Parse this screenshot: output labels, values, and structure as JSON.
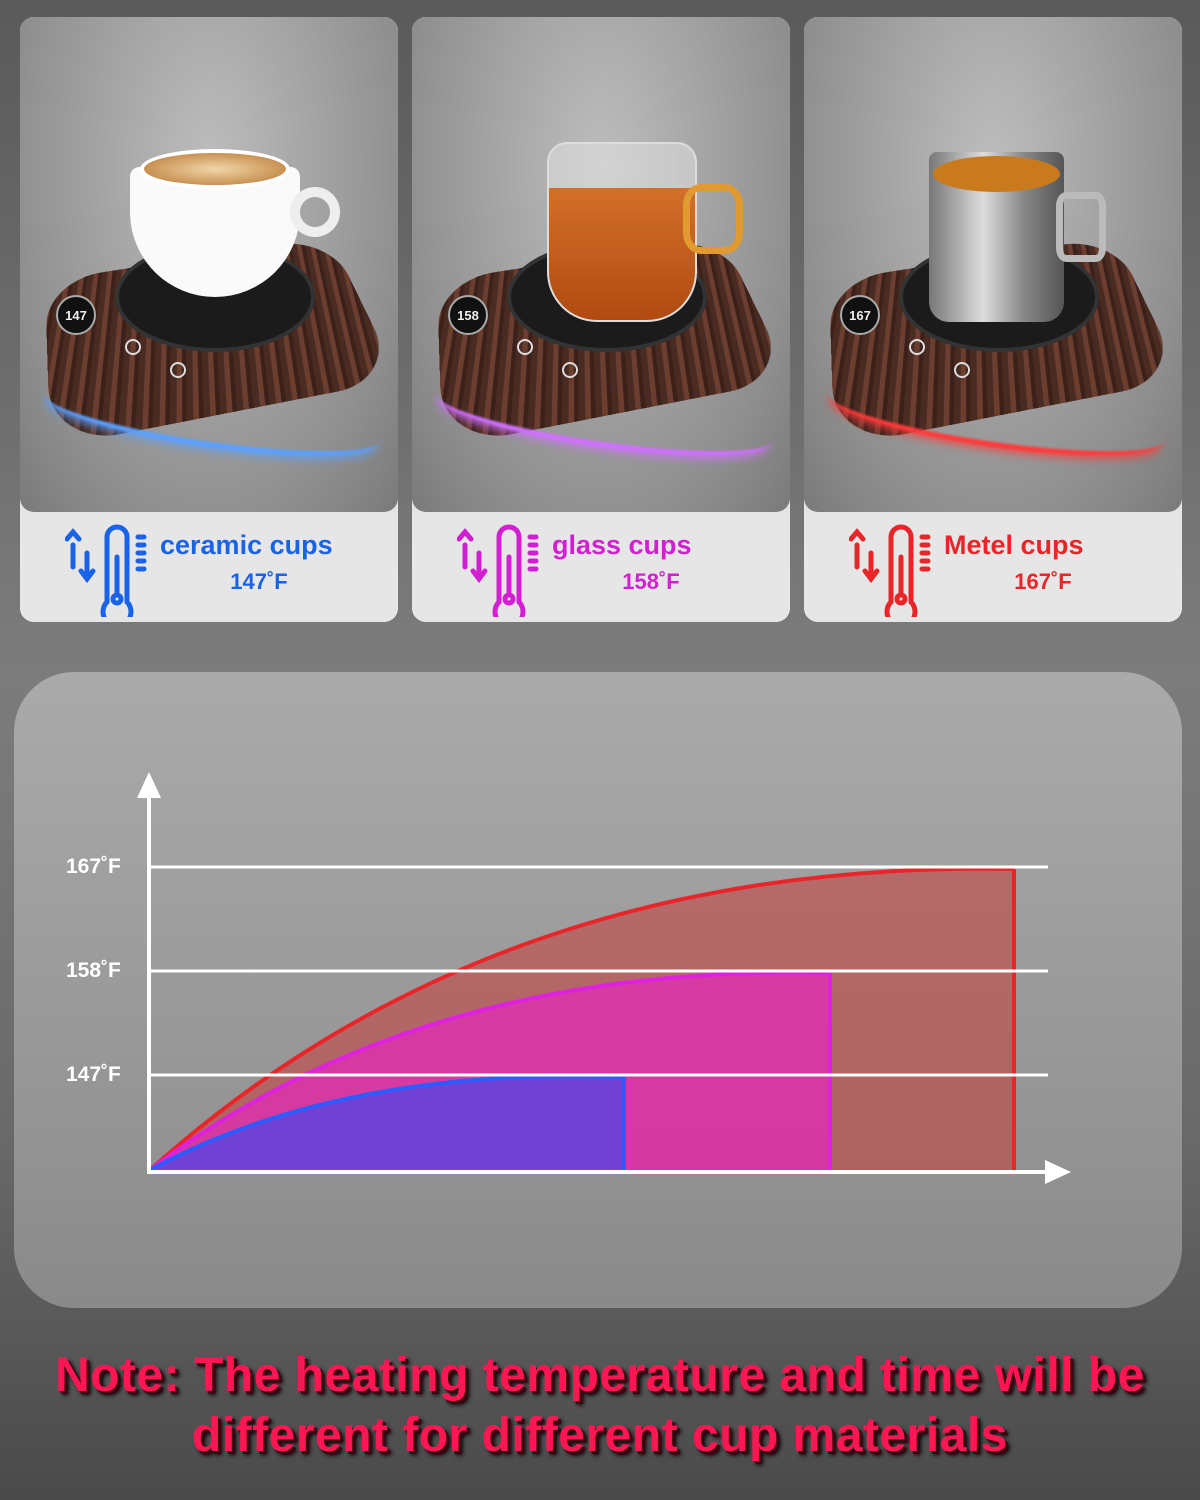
{
  "cards": [
    {
      "title": "ceramic cups",
      "temp": "147˚F",
      "display": "147",
      "color": "#1a63e8",
      "glow": "#5aa0ff",
      "cup": "ceramic-coffee-cup"
    },
    {
      "title": "glass cups",
      "temp": "158˚F",
      "display": "158",
      "color": "#d21fd2",
      "glow": "#d070ff",
      "cup": "glass-tea-mug"
    },
    {
      "title": "Metel cups",
      "temp": "167˚F",
      "display": "167",
      "color": "#e8262a",
      "glow": "#ff3a3a",
      "cup": "metal-cup"
    }
  ],
  "chart_data": {
    "type": "area",
    "yticks": [
      "167˚F",
      "158˚F",
      "147˚F"
    ],
    "series": [
      {
        "peak": 167,
        "color": "#e8262a"
      },
      {
        "peak": 158,
        "color": "#e020e0"
      },
      {
        "peak": 147,
        "color": "#2a5cff"
      }
    ],
    "grid": true
  },
  "note": {
    "line1": "Note: The heating temperature and time will be",
    "line2": "different for different cup materials"
  }
}
